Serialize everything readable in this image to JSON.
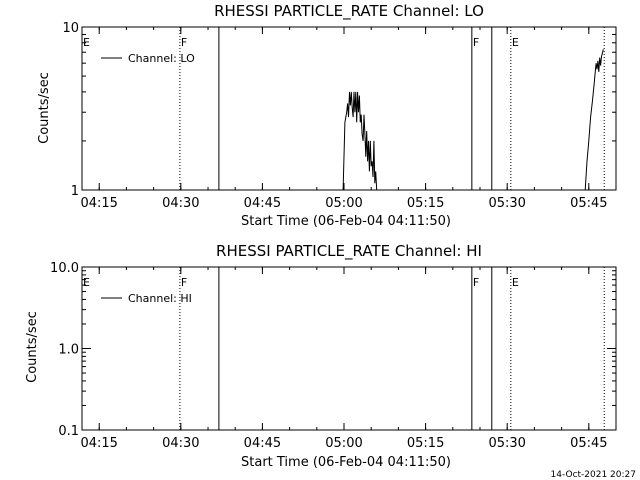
{
  "footer": {
    "timestamp": "14-Oct-2021 20:27"
  },
  "chart_data": [
    {
      "type": "line",
      "title": "RHESSI PARTICLE_RATE Channel: LO",
      "xlabel": "Start Time (06-Feb-04 04:11:50)",
      "ylabel": "Counts/sec",
      "y_scale": "log",
      "ylim": [
        1,
        10
      ],
      "y_ticks": [
        1,
        10
      ],
      "y_tick_labels": [
        "1",
        "10"
      ],
      "xlim": [
        "04:11:50",
        "05:50:00"
      ],
      "x_ticks": [
        "04:15",
        "04:30",
        "04:45",
        "05:00",
        "05:15",
        "05:30",
        "05:45"
      ],
      "legend": {
        "position": "top-left",
        "entries": [
          "Channel: LO"
        ]
      },
      "flags": [
        {
          "label": "E",
          "time": "04:11:50",
          "style": "none"
        },
        {
          "label": "F",
          "time": "04:29:50",
          "style": "dotted"
        },
        {
          "label": "",
          "time": "04:37:00",
          "style": "solid"
        },
        {
          "label": "F",
          "time": "05:23:30",
          "style": "solid"
        },
        {
          "label": "",
          "time": "05:27:10",
          "style": "solid"
        },
        {
          "label": "E",
          "time": "05:30:40",
          "style": "dotted"
        },
        {
          "label": "",
          "time": "05:47:50",
          "style": "dotted"
        }
      ],
      "series": [
        {
          "name": "Channel: LO",
          "segments": [
            {
              "x": [
                "04:59:50",
                "05:00:10",
                "05:00:30",
                "05:00:40",
                "05:00:50",
                "05:01:00",
                "05:01:10",
                "05:01:20",
                "05:01:30",
                "05:01:40",
                "05:01:50",
                "05:02:00",
                "05:02:10",
                "05:02:20",
                "05:02:30",
                "05:02:40",
                "05:02:50",
                "05:03:00",
                "05:03:10",
                "05:03:20",
                "05:03:30",
                "05:03:40",
                "05:03:50",
                "05:04:00",
                "05:04:10",
                "05:04:20",
                "05:04:30",
                "05:04:40",
                "05:04:50",
                "05:05:00",
                "05:05:10",
                "05:05:20",
                "05:05:30",
                "05:05:40",
                "05:05:50",
                "05:06:00"
              ],
              "y": [
                1.0,
                2.6,
                3.0,
                3.4,
                2.8,
                4.0,
                3.3,
                4.0,
                3.2,
                2.8,
                4.0,
                3.0,
                4.0,
                2.6,
                4.0,
                3.0,
                3.8,
                2.6,
                2.9,
                2.2,
                2.0,
                2.9,
                2.2,
                1.6,
                2.3,
                1.5,
                2.0,
                1.3,
                2.0,
                1.4,
                1.5,
                1.2,
                2.0,
                1.1,
                1.3,
                1.0
              ]
            },
            {
              "x": [
                "05:44:20",
                "05:44:40",
                "05:45:00",
                "05:45:20",
                "05:45:40",
                "05:46:00",
                "05:46:10",
                "05:46:20",
                "05:46:30",
                "05:46:40",
                "05:46:50",
                "05:47:00",
                "05:47:10",
                "05:47:20",
                "05:47:30",
                "05:47:40"
              ],
              "y": [
                1.0,
                1.5,
                2.0,
                2.8,
                3.5,
                4.5,
                5.2,
                6.0,
                5.5,
                6.2,
                5.3,
                6.5,
                5.8,
                6.6,
                6.9,
                7.3
              ]
            }
          ]
        }
      ]
    },
    {
      "type": "line",
      "title": "RHESSI PARTICLE_RATE Channel: HI",
      "xlabel": "Start Time (06-Feb-04 04:11:50)",
      "ylabel": "Counts/sec",
      "y_scale": "log",
      "ylim": [
        0.1,
        10
      ],
      "y_ticks": [
        0.1,
        1,
        10
      ],
      "y_tick_labels": [
        "0.1",
        "1.0",
        "10.0"
      ],
      "xlim": [
        "04:11:50",
        "05:50:00"
      ],
      "x_ticks": [
        "04:15",
        "04:30",
        "04:45",
        "05:00",
        "05:15",
        "05:30",
        "05:45"
      ],
      "legend": {
        "position": "top-left",
        "entries": [
          "Channel: HI"
        ]
      },
      "flags": [
        {
          "label": "E",
          "time": "04:11:50",
          "style": "none"
        },
        {
          "label": "F",
          "time": "04:29:50",
          "style": "dotted"
        },
        {
          "label": "",
          "time": "04:37:00",
          "style": "solid"
        },
        {
          "label": "F",
          "time": "05:23:30",
          "style": "solid"
        },
        {
          "label": "",
          "time": "05:27:10",
          "style": "solid"
        },
        {
          "label": "E",
          "time": "05:30:40",
          "style": "dotted"
        },
        {
          "label": "",
          "time": "05:47:50",
          "style": "dotted"
        }
      ],
      "series": [
        {
          "name": "Channel: HI",
          "segments": []
        }
      ]
    }
  ]
}
